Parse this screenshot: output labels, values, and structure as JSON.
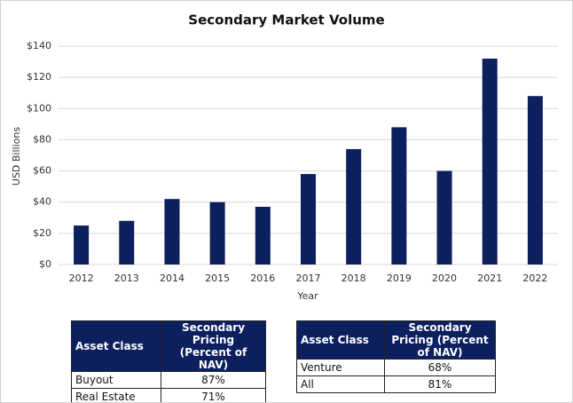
{
  "chart_data": {
    "type": "bar",
    "title": "Secondary Market Volume",
    "x_label": "Year",
    "y_label": "USD Billions",
    "categories": [
      "2012",
      "2013",
      "2014",
      "2015",
      "2016",
      "2017",
      "2018",
      "2019",
      "2020",
      "2021",
      "2022"
    ],
    "values": [
      25,
      28,
      42,
      40,
      37,
      58,
      74,
      88,
      60,
      132,
      108
    ],
    "color": "#0c1f5e",
    "ylim": [
      0,
      140
    ],
    "yticks": [
      {
        "value": 0,
        "label": "$0"
      },
      {
        "value": 20,
        "label": "$20"
      },
      {
        "value": 40,
        "label": "$40"
      },
      {
        "value": 60,
        "label": "$60"
      },
      {
        "value": 80,
        "label": "$80"
      },
      {
        "value": 100,
        "label": "$100"
      },
      {
        "value": 120,
        "label": "$120"
      },
      {
        "value": 140,
        "label": "$140"
      }
    ],
    "grid": true
  },
  "tables": [
    {
      "header": [
        "Asset Class",
        "Secondary Pricing (Percent of NAV)"
      ],
      "rows": [
        [
          "Buyout",
          "87%"
        ],
        [
          "Real Estate",
          "71%"
        ]
      ]
    },
    {
      "header": [
        "Asset Class",
        "Secondary Pricing (Percent of NAV)"
      ],
      "rows": [
        [
          "Venture",
          "68%"
        ],
        [
          "All",
          "81%"
        ]
      ]
    }
  ]
}
